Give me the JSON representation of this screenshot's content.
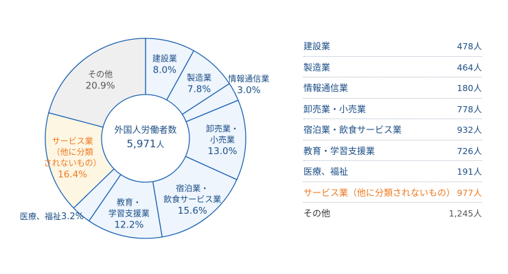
{
  "chart_data": {
    "type": "pie",
    "variant": "donut",
    "total_label": "外国人労働者数",
    "total_value": "5,971",
    "total_unit": "人",
    "slices": [
      {
        "name": "建設業",
        "label_lines": [
          "建設業"
        ],
        "percent": 8.0,
        "count": 478,
        "highlight": false,
        "other": false
      },
      {
        "name": "製造業",
        "label_lines": [
          "製造業"
        ],
        "percent": 7.8,
        "count": 464,
        "highlight": false,
        "other": false
      },
      {
        "name": "情報通信業",
        "label_lines": [
          "情報通信業"
        ],
        "percent": 3.0,
        "count": 180,
        "highlight": false,
        "other": false
      },
      {
        "name": "卸売業・小売業",
        "label_lines": [
          "卸売業・",
          "小売業"
        ],
        "percent": 13.0,
        "count": 778,
        "highlight": false,
        "other": false
      },
      {
        "name": "宿泊業・飲食サービス業",
        "label_lines": [
          "宿泊業・",
          "飲食サービス業"
        ],
        "percent": 15.6,
        "count": 932,
        "highlight": false,
        "other": false
      },
      {
        "name": "教育・学習支援業",
        "label_lines": [
          "教育・",
          "学習支援業"
        ],
        "percent": 12.2,
        "count": 726,
        "highlight": false,
        "other": false
      },
      {
        "name": "医療、福祉",
        "label_lines": [
          "医療、福祉"
        ],
        "percent": 3.2,
        "count": 191,
        "highlight": false,
        "other": false
      },
      {
        "name": "サービス業（他に分類されないもの）",
        "label_lines": [
          "サービス業",
          "（他に分類",
          "されないもの）"
        ],
        "percent": 16.4,
        "count": 977,
        "highlight": true,
        "other": false
      },
      {
        "name": "その他",
        "label_lines": [
          "その他"
        ],
        "percent": 20.9,
        "count": "1,245",
        "highlight": false,
        "other": true
      }
    ],
    "count_unit": "人",
    "percent_suffix": "%"
  },
  "legend": [
    {
      "label": "建設業",
      "value": "478人"
    },
    {
      "label": "製造業",
      "value": "464人"
    },
    {
      "label": "情報通信業",
      "value": "180人"
    },
    {
      "label": "卸売業・小売業",
      "value": "778人"
    },
    {
      "label": "宿泊業・飲食サービス業",
      "value": "932人"
    },
    {
      "label": "教育・学習支援業",
      "value": "726人"
    },
    {
      "label": "医療、福祉",
      "value": "191人"
    },
    {
      "label": "サービス業（他に分類されないもの）",
      "value": "977人"
    },
    {
      "label": "その他",
      "value": "1,245人"
    }
  ],
  "colors": {
    "slice_fill": "#eef5fd",
    "highlight_fill": "#fdf6e3",
    "other_fill": "#efefef",
    "slice_stroke": "#1d63b3",
    "text_primary": "#1d4f86",
    "text_highlight": "#ee7a22",
    "text_other": "#555555"
  }
}
